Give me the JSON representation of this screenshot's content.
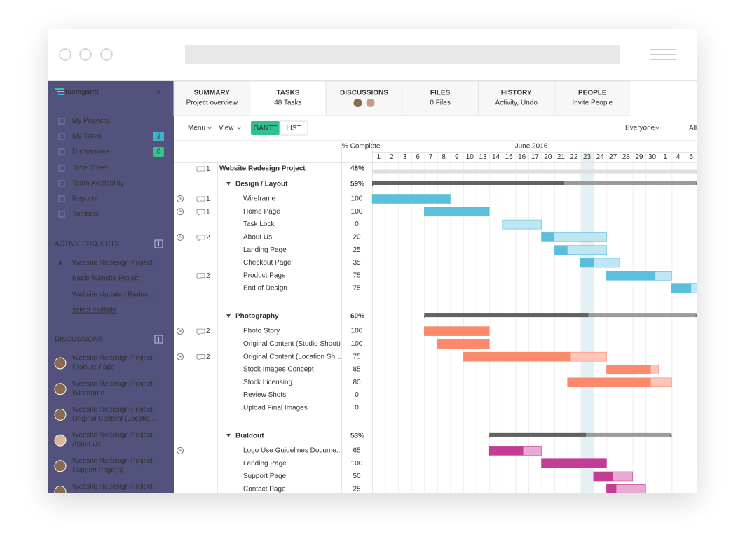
{
  "sidebar": {
    "logo": "teamgantt",
    "close": "x",
    "nav": [
      {
        "label": "My Projects"
      },
      {
        "label": "My Tasks",
        "badge": 2
      },
      {
        "label": "Discussions",
        "badge": 0
      },
      {
        "label": "Time Sheet"
      },
      {
        "label": "Team Availability"
      },
      {
        "label": "Reports"
      },
      {
        "label": "Tutorials"
      }
    ],
    "active_projects": {
      "title": "ACTIVE PROJECTS",
      "items": [
        "Website Redesign Project",
        "Basic Website Project",
        "Website Update / Redes..."
      ],
      "action": "select multiple"
    },
    "discussions": {
      "title": "DISCUSSIONS",
      "items": [
        {
          "project": "Website Redesign Project",
          "task": "Product Page"
        },
        {
          "project": "Website Redesign Project",
          "task": "Wireframe"
        },
        {
          "project": "Website Redesign Project",
          "task": "Original Content (Locatio..."
        },
        {
          "project": "Website Redesign Project",
          "task": "About Us"
        },
        {
          "project": "Website Redesign Project",
          "task": "Support Page(s)"
        },
        {
          "project": "Website Redesign Project"
        }
      ]
    }
  },
  "tabs": [
    {
      "title": "SUMMARY",
      "sub": "Project overview"
    },
    {
      "title": "TASKS",
      "sub": "48 Tasks"
    },
    {
      "title": "DISCUSSIONS"
    },
    {
      "title": "FILES",
      "sub": "0 Files"
    },
    {
      "title": "HISTORY",
      "sub": "Activity, Undo"
    },
    {
      "title": "PEOPLE",
      "sub": "Invite People"
    }
  ],
  "toolbar": {
    "menu": "Menu",
    "view": "View",
    "gantt": "GANTT",
    "list": "LIST",
    "filter": "Everyone",
    "all": "All"
  },
  "gantt": {
    "pct_header": "% Complete",
    "month": "June 2016",
    "days": [
      1,
      2,
      3,
      6,
      7,
      8,
      9,
      10,
      13,
      14,
      15,
      16,
      17,
      20,
      21,
      22,
      23,
      24,
      27,
      28,
      29,
      30,
      1,
      4,
      5
    ],
    "project": {
      "name": "Website Redesign Project",
      "comments": 1,
      "percent": {
        "value": 48,
        "label": "48%"
      },
      "span": [
        0,
        25
      ]
    },
    "groups": [
      {
        "name": "Design / Layout",
        "percent": {
          "value": 59,
          "label": "59%"
        },
        "span": [
          0,
          25
        ],
        "color": "#5bbfdc",
        "light": "#bfe6f2",
        "tasks": [
          {
            "name": "Wireframe",
            "clock": true,
            "comments": 1,
            "complete": 100,
            "span": [
              0,
              6
            ]
          },
          {
            "name": "Home Page",
            "clock": true,
            "comments": 1,
            "complete": 100,
            "span": [
              4,
              9
            ]
          },
          {
            "name": "Task Lock",
            "complete": 0,
            "span": [
              10,
              13
            ]
          },
          {
            "name": "About Us",
            "clock": true,
            "comments": 2,
            "complete": 20,
            "span": [
              13,
              18
            ]
          },
          {
            "name": "Landing Page",
            "complete": 25,
            "span": [
              14,
              18
            ]
          },
          {
            "name": "Checkout Page",
            "complete": 35,
            "span": [
              16,
              19
            ]
          },
          {
            "name": "Product Page",
            "comments": 2,
            "complete": 75,
            "span": [
              18,
              23
            ]
          },
          {
            "name": "End of Design",
            "complete": 75,
            "span": [
              23,
              25
            ]
          }
        ]
      },
      {
        "name": "Photography",
        "percent": {
          "value": 60,
          "label": "60%"
        },
        "span": [
          4,
          25
        ],
        "color": "#fb8a6d",
        "light": "#fdc6b8",
        "tasks": [
          {
            "name": "Photo Story",
            "clock": true,
            "comments": 2,
            "complete": 100,
            "span": [
              4,
              9
            ]
          },
          {
            "name": "Original Content (Studio Shoot)",
            "complete": 100,
            "span": [
              5,
              9
            ]
          },
          {
            "name": "Original Content (Location Sh...",
            "clock": true,
            "comments": 2,
            "complete": 75,
            "span": [
              7,
              18
            ]
          },
          {
            "name": "Stock Images Concept",
            "complete": 85,
            "span": [
              18,
              22
            ]
          },
          {
            "name": "Stock Licensing",
            "complete": 80,
            "span": [
              15,
              23
            ]
          },
          {
            "name": "Review Shots",
            "complete": 0
          },
          {
            "name": "Upload Final Images",
            "complete": 0
          }
        ]
      },
      {
        "name": "Buildout",
        "percent": {
          "value": 53,
          "label": "53%"
        },
        "span": [
          9,
          23
        ],
        "color": "#c23d93",
        "light": "#e6aad3",
        "tasks": [
          {
            "name": "Logo Use Guidelines Docume...",
            "clock": true,
            "complete": 65,
            "span": [
              9,
              13
            ]
          },
          {
            "name": "Landing Page",
            "complete": 100,
            "span": [
              13,
              18
            ]
          },
          {
            "name": "Support Page",
            "complete": 50,
            "span": [
              17,
              20
            ]
          },
          {
            "name": "Contact Page",
            "complete": 25,
            "span": [
              18,
              21
            ]
          }
        ]
      }
    ]
  }
}
